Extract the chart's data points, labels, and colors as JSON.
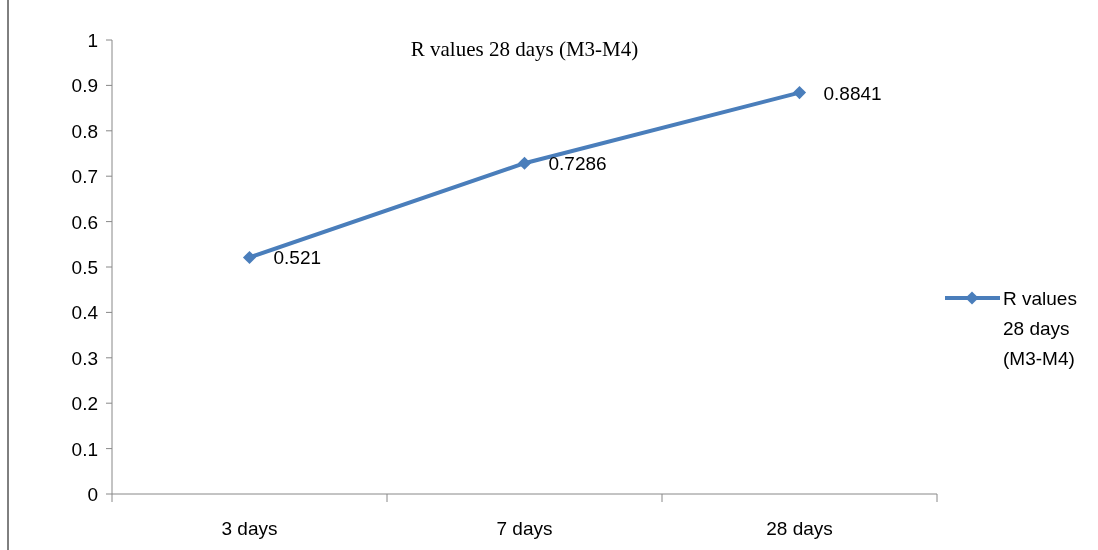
{
  "chart_data": {
    "type": "line",
    "title": "R values 28 days (M3-M4)",
    "categories": [
      "3 days",
      "7 days",
      "28 days"
    ],
    "series": [
      {
        "name": "R values 28 days (M3-M4)",
        "color": "#4a7ebb",
        "values": [
          0.521,
          0.7286,
          0.8841
        ]
      }
    ],
    "ylim": [
      0,
      1
    ],
    "yticks": [
      0,
      0.1,
      0.2,
      0.3,
      0.4,
      0.5,
      0.6,
      0.7,
      0.8,
      0.9,
      1
    ],
    "data_labels": true,
    "legend": "right",
    "marker": "diamond",
    "grid": false
  }
}
